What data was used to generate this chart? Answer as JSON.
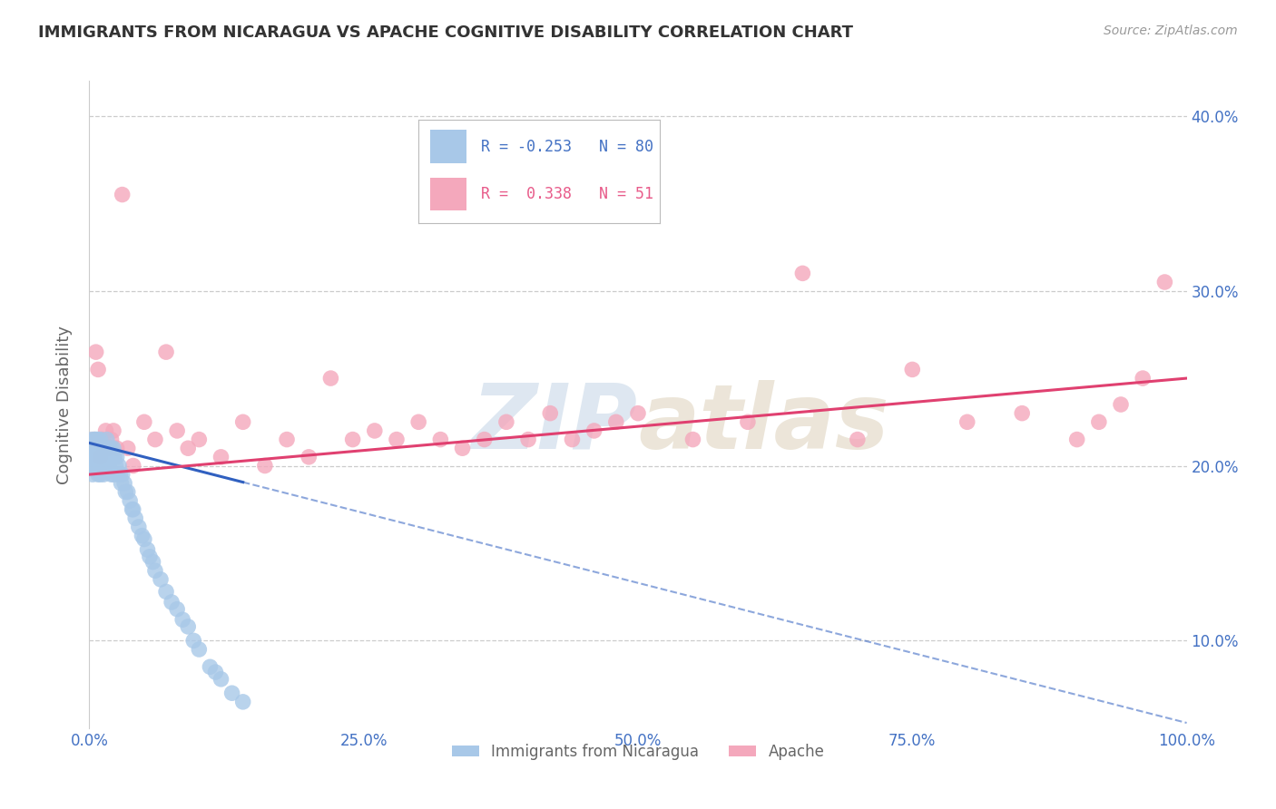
{
  "title": "IMMIGRANTS FROM NICARAGUA VS APACHE COGNITIVE DISABILITY CORRELATION CHART",
  "source": "Source: ZipAtlas.com",
  "ylabel": "Cognitive Disability",
  "xlim": [
    0.0,
    1.0
  ],
  "ylim": [
    0.05,
    0.42
  ],
  "yticks": [
    0.1,
    0.2,
    0.3,
    0.4
  ],
  "ytick_labels": [
    "10.0%",
    "20.0%",
    "30.0%",
    "40.0%"
  ],
  "xticks": [
    0.0,
    0.25,
    0.5,
    0.75,
    1.0
  ],
  "xtick_labels": [
    "0.0%",
    "25.0%",
    "50.0%",
    "75.0%",
    "100.0%"
  ],
  "blue_label": "Immigrants from Nicaragua",
  "pink_label": "Apache",
  "blue_R": -0.253,
  "blue_N": 80,
  "pink_R": 0.338,
  "pink_N": 51,
  "blue_color": "#A8C8E8",
  "pink_color": "#F4A8BC",
  "blue_line_color": "#3060C0",
  "pink_line_color": "#E04070",
  "background_color": "#FFFFFF",
  "grid_color": "#CCCCCC",
  "title_color": "#333333",
  "axis_label_color": "#666666",
  "tick_color": "#4472C4",
  "legend_R_blue_color": "#4472C4",
  "legend_R_pink_color": "#E85B8A",
  "watermark_color": "#C8D8E8",
  "blue_line_intercept": 0.213,
  "blue_line_slope": -0.16,
  "pink_line_intercept": 0.195,
  "pink_line_slope": 0.055,
  "blue_scatter_x": [
    0.001,
    0.001,
    0.002,
    0.002,
    0.003,
    0.003,
    0.003,
    0.004,
    0.004,
    0.005,
    0.005,
    0.005,
    0.006,
    0.006,
    0.007,
    0.007,
    0.008,
    0.008,
    0.008,
    0.009,
    0.009,
    0.01,
    0.01,
    0.01,
    0.011,
    0.011,
    0.012,
    0.012,
    0.013,
    0.013,
    0.014,
    0.014,
    0.015,
    0.015,
    0.016,
    0.016,
    0.017,
    0.018,
    0.018,
    0.019,
    0.02,
    0.02,
    0.021,
    0.022,
    0.022,
    0.023,
    0.024,
    0.025,
    0.026,
    0.027,
    0.028,
    0.029,
    0.03,
    0.032,
    0.033,
    0.035,
    0.037,
    0.039,
    0.04,
    0.042,
    0.045,
    0.048,
    0.05,
    0.053,
    0.055,
    0.058,
    0.06,
    0.065,
    0.07,
    0.075,
    0.08,
    0.085,
    0.09,
    0.095,
    0.1,
    0.11,
    0.115,
    0.12,
    0.13,
    0.14
  ],
  "blue_scatter_y": [
    0.21,
    0.205,
    0.215,
    0.2,
    0.21,
    0.205,
    0.195,
    0.21,
    0.2,
    0.215,
    0.21,
    0.2,
    0.215,
    0.205,
    0.21,
    0.2,
    0.215,
    0.205,
    0.195,
    0.21,
    0.2,
    0.215,
    0.205,
    0.195,
    0.21,
    0.205,
    0.21,
    0.2,
    0.205,
    0.195,
    0.21,
    0.2,
    0.21,
    0.2,
    0.215,
    0.205,
    0.205,
    0.21,
    0.2,
    0.205,
    0.21,
    0.195,
    0.205,
    0.21,
    0.195,
    0.205,
    0.2,
    0.205,
    0.195,
    0.2,
    0.195,
    0.19,
    0.195,
    0.19,
    0.185,
    0.185,
    0.18,
    0.175,
    0.175,
    0.17,
    0.165,
    0.16,
    0.158,
    0.152,
    0.148,
    0.145,
    0.14,
    0.135,
    0.128,
    0.122,
    0.118,
    0.112,
    0.108,
    0.1,
    0.095,
    0.085,
    0.082,
    0.078,
    0.07,
    0.065
  ],
  "pink_scatter_x": [
    0.004,
    0.006,
    0.008,
    0.01,
    0.012,
    0.015,
    0.018,
    0.02,
    0.022,
    0.025,
    0.03,
    0.035,
    0.04,
    0.05,
    0.06,
    0.07,
    0.08,
    0.09,
    0.1,
    0.12,
    0.14,
    0.16,
    0.18,
    0.2,
    0.22,
    0.24,
    0.26,
    0.28,
    0.3,
    0.32,
    0.34,
    0.36,
    0.38,
    0.4,
    0.42,
    0.44,
    0.46,
    0.48,
    0.5,
    0.55,
    0.6,
    0.65,
    0.7,
    0.75,
    0.8,
    0.85,
    0.9,
    0.92,
    0.94,
    0.96,
    0.98
  ],
  "pink_scatter_y": [
    0.215,
    0.265,
    0.255,
    0.205,
    0.215,
    0.22,
    0.21,
    0.215,
    0.22,
    0.21,
    0.355,
    0.21,
    0.2,
    0.225,
    0.215,
    0.265,
    0.22,
    0.21,
    0.215,
    0.205,
    0.225,
    0.2,
    0.215,
    0.205,
    0.25,
    0.215,
    0.22,
    0.215,
    0.225,
    0.215,
    0.21,
    0.215,
    0.225,
    0.215,
    0.23,
    0.215,
    0.22,
    0.225,
    0.23,
    0.215,
    0.225,
    0.31,
    0.215,
    0.255,
    0.225,
    0.23,
    0.215,
    0.225,
    0.235,
    0.25,
    0.305
  ]
}
